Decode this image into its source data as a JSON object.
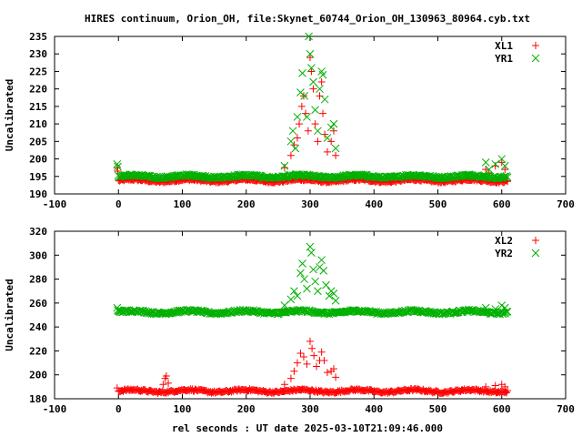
{
  "chart_data": {
    "type": "scatter",
    "title": "HIRES continuum, Orion_OH, file:Skynet_60744_Orion_OH_130963_80964.cyb.txt",
    "xlabel": "rel seconds : UT date 2025-03-10T21:09:46.000",
    "legend_placement": "top-right",
    "grid": false,
    "x_range": [
      -100,
      700
    ],
    "x_ticks": [
      -100,
      0,
      100,
      200,
      300,
      400,
      500,
      600,
      700
    ],
    "colors": {
      "red": "#ff0000",
      "green": "#00b000"
    },
    "panels": [
      {
        "ylabel": "Uncalibrated",
        "ylim": [
          190,
          235
        ],
        "y_ticks": [
          190,
          195,
          200,
          205,
          210,
          215,
          220,
          225,
          230,
          235
        ],
        "series": [
          {
            "name": "XL1",
            "marker": "plus",
            "color": "#ff0000",
            "baseline": 193.8,
            "points": [
              [
                -2,
                197.5
              ],
              [
                -1,
                196.5
              ],
              [
                260,
                197.5
              ],
              [
                270,
                201
              ],
              [
                275,
                204
              ],
              [
                280,
                206
              ],
              [
                283,
                210
              ],
              [
                287,
                215
              ],
              [
                290,
                218
              ],
              [
                293,
                213
              ],
              [
                297,
                208
              ],
              [
                300,
                229
              ],
              [
                302,
                225
              ],
              [
                305,
                220
              ],
              [
                308,
                210
              ],
              [
                312,
                205
              ],
              [
                315,
                218
              ],
              [
                318,
                222
              ],
              [
                320,
                213
              ],
              [
                323,
                207
              ],
              [
                327,
                202
              ],
              [
                333,
                205
              ],
              [
                337,
                208
              ],
              [
                340,
                201
              ],
              [
                575,
                197
              ],
              [
                580,
                196
              ],
              [
                590,
                198
              ],
              [
                600,
                199
              ],
              [
                605,
                197
              ]
            ]
          },
          {
            "name": "YR1",
            "marker": "cross",
            "color": "#00b000",
            "baseline": 195.0,
            "points": [
              [
                -2,
                198.5
              ],
              [
                -1,
                197.8
              ],
              [
                260,
                198
              ],
              [
                270,
                205
              ],
              [
                273,
                208
              ],
              [
                277,
                203
              ],
              [
                280,
                212
              ],
              [
                285,
                219
              ],
              [
                288,
                224.5
              ],
              [
                291,
                218
              ],
              [
                295,
                212
              ],
              [
                298,
                235
              ],
              [
                300,
                230
              ],
              [
                302,
                226
              ],
              [
                305,
                222
              ],
              [
                308,
                214
              ],
              [
                312,
                208
              ],
              [
                315,
                220
              ],
              [
                318,
                225
              ],
              [
                320,
                224
              ],
              [
                323,
                217
              ],
              [
                327,
                206
              ],
              [
                333,
                209
              ],
              [
                337,
                210
              ],
              [
                340,
                203
              ],
              [
                575,
                199
              ],
              [
                580,
                197
              ],
              [
                590,
                198.5
              ],
              [
                600,
                200
              ],
              [
                605,
                198
              ]
            ]
          }
        ]
      },
      {
        "ylabel": "Uncalibrated",
        "ylim": [
          180,
          320
        ],
        "y_ticks": [
          180,
          200,
          220,
          240,
          260,
          280,
          300,
          320
        ],
        "series": [
          {
            "name": "XL2",
            "marker": "plus",
            "color": "#ff0000",
            "baseline": 186.5,
            "points": [
              [
                -2,
                189
              ],
              [
                70,
                192
              ],
              [
                73,
                197
              ],
              [
                75,
                199
              ],
              [
                78,
                193
              ],
              [
                260,
                192
              ],
              [
                270,
                197
              ],
              [
                275,
                203
              ],
              [
                280,
                210
              ],
              [
                285,
                218
              ],
              [
                290,
                215
              ],
              [
                295,
                209
              ],
              [
                300,
                228
              ],
              [
                303,
                222
              ],
              [
                306,
                216
              ],
              [
                310,
                207
              ],
              [
                315,
                212
              ],
              [
                318,
                219
              ],
              [
                322,
                212
              ],
              [
                327,
                202
              ],
              [
                333,
                203
              ],
              [
                337,
                205
              ],
              [
                340,
                198
              ],
              [
                575,
                190
              ],
              [
                590,
                191
              ],
              [
                600,
                192
              ],
              [
                605,
                190
              ]
            ]
          },
          {
            "name": "YR2",
            "marker": "cross",
            "color": "#00b000",
            "baseline": 252.5,
            "points": [
              [
                -2,
                256
              ],
              [
                -1,
                254
              ],
              [
                260,
                258
              ],
              [
                270,
                263
              ],
              [
                275,
                270
              ],
              [
                280,
                266
              ],
              [
                285,
                285
              ],
              [
                288,
                293
              ],
              [
                291,
                280
              ],
              [
                295,
                272
              ],
              [
                300,
                307
              ],
              [
                302,
                302
              ],
              [
                305,
                288
              ],
              [
                308,
                278
              ],
              [
                312,
                270
              ],
              [
                315,
                290
              ],
              [
                318,
                296
              ],
              [
                321,
                287
              ],
              [
                325,
                275
              ],
              [
                330,
                266
              ],
              [
                333,
                270
              ],
              [
                337,
                268
              ],
              [
                340,
                262
              ],
              [
                575,
                256
              ],
              [
                590,
                255
              ],
              [
                600,
                258
              ],
              [
                605,
                256
              ]
            ]
          }
        ]
      }
    ]
  }
}
